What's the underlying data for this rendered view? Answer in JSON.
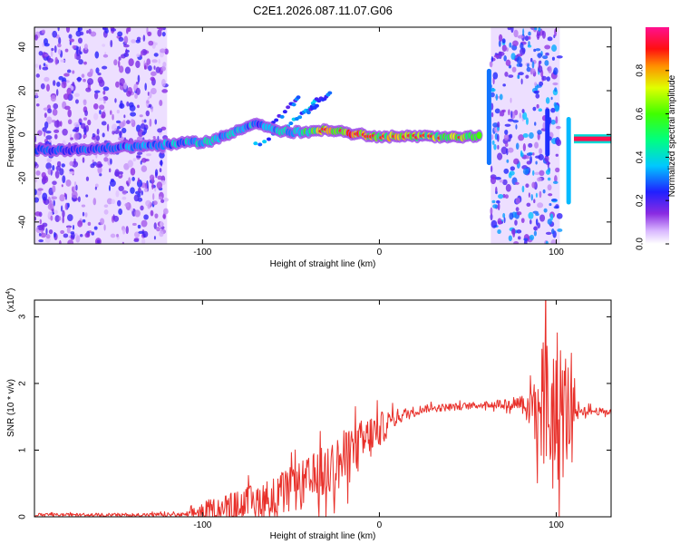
{
  "title": "C2E1.2026.087.11.07.G06",
  "chart_data": [
    {
      "type": "heatmap",
      "name": "spectrogram",
      "xlabel": "Height of straight line (km)",
      "ylabel": "Frequency (Hz)",
      "xlim": [
        -195,
        131
      ],
      "ylim": [
        -50,
        49
      ],
      "xticks": [
        -100,
        0,
        100
      ],
      "yticks": [
        -40,
        -20,
        0,
        20,
        40
      ],
      "xtick_labels": [
        "-100",
        "0",
        "100"
      ],
      "ytick_labels": [
        "-40",
        "-20",
        "0",
        "20",
        "40"
      ],
      "colorbar": {
        "label": "Normalized spectral amplitude",
        "range": [
          0,
          1
        ],
        "ticks": [
          0.0,
          0.2,
          0.4,
          0.6,
          0.8
        ],
        "tick_labels": [
          "0.0",
          "0.2",
          "0.4",
          "0.6",
          "0.8"
        ]
      },
      "ridge": [
        {
          "x": -195,
          "y": -7,
          "a": 0.25
        },
        {
          "x": -170,
          "y": -7,
          "a": 0.25
        },
        {
          "x": -150,
          "y": -6,
          "a": 0.28
        },
        {
          "x": -130,
          "y": -5,
          "a": 0.3
        },
        {
          "x": -110,
          "y": -4,
          "a": 0.35
        },
        {
          "x": -95,
          "y": -3,
          "a": 0.4
        },
        {
          "x": -85,
          "y": 0,
          "a": 0.35
        },
        {
          "x": -75,
          "y": 4,
          "a": 0.35
        },
        {
          "x": -68,
          "y": 5,
          "a": 0.3
        },
        {
          "x": -60,
          "y": 2,
          "a": 0.35
        },
        {
          "x": -50,
          "y": 1,
          "a": 0.4
        },
        {
          "x": -40,
          "y": 1,
          "a": 0.5
        },
        {
          "x": -30,
          "y": 2,
          "a": 0.65
        },
        {
          "x": -20,
          "y": 1,
          "a": 0.8
        },
        {
          "x": -10,
          "y": 0,
          "a": 0.7
        },
        {
          "x": 0,
          "y": -1,
          "a": 0.6
        },
        {
          "x": 10,
          "y": -1,
          "a": 0.7
        },
        {
          "x": 20,
          "y": -1,
          "a": 0.6
        },
        {
          "x": 30,
          "y": -1,
          "a": 0.6
        },
        {
          "x": 40,
          "y": -1,
          "a": 0.6
        },
        {
          "x": 50,
          "y": -1,
          "a": 0.55
        },
        {
          "x": 58,
          "y": -1,
          "a": 0.5
        }
      ],
      "branches": [
        {
          "points": [
            [
              -70,
              -5
            ],
            [
              -55,
              2
            ],
            [
              -45,
              8
            ],
            [
              -38,
              13
            ],
            [
              -35,
              16
            ]
          ],
          "a": 0.3
        },
        {
          "points": [
            [
              -60,
              5
            ],
            [
              -50,
              13
            ],
            [
              -45,
              17
            ]
          ],
          "a": 0.25
        },
        {
          "points": [
            [
              -40,
              10
            ],
            [
              -33,
              16
            ],
            [
              -27,
              19
            ]
          ],
          "a": 0.25
        }
      ],
      "noise_regions": [
        {
          "x": [
            -195,
            -120
          ],
          "y": [
            -50,
            49
          ],
          "a": 0.12
        },
        {
          "x": [
            63,
            102
          ],
          "y": [
            -50,
            49
          ],
          "a": 0.18
        }
      ],
      "spikes": [
        {
          "x": 62,
          "y_range": [
            -14,
            30
          ],
          "a": 0.3
        },
        {
          "x": 95,
          "y_range": [
            -10,
            12
          ],
          "a": 0.25
        },
        {
          "x": 107,
          "y_range": [
            -32,
            8
          ],
          "a": 0.35
        }
      ],
      "tail": {
        "x": [
          110,
          131
        ],
        "y": -2,
        "a": 0.95
      }
    },
    {
      "type": "line",
      "name": "snr",
      "xlabel": "Height of straight line (km)",
      "ylabel": "SNR (10 * v/v)",
      "y_multiplier": "(x10",
      "y_multiplier_exp": "4",
      "y_multiplier_close": ")",
      "xlim": [
        -195,
        131
      ],
      "ylim": [
        0,
        3.25
      ],
      "xticks": [
        -100,
        0,
        100
      ],
      "yticks": [
        0,
        1,
        2,
        3
      ],
      "xtick_labels": [
        "-100",
        "0",
        "100"
      ],
      "ytick_labels": [
        "0",
        "1",
        "2",
        "3"
      ],
      "color": "#e8302a",
      "envelope": [
        {
          "x": -195,
          "y": 0.03,
          "noise": 0.02
        },
        {
          "x": -110,
          "y": 0.03,
          "noise": 0.03
        },
        {
          "x": -100,
          "y": 0.08,
          "noise": 0.15
        },
        {
          "x": -80,
          "y": 0.15,
          "noise": 0.25
        },
        {
          "x": -60,
          "y": 0.3,
          "noise": 0.3
        },
        {
          "x": -40,
          "y": 0.5,
          "noise": 0.4
        },
        {
          "x": -20,
          "y": 0.85,
          "noise": 0.45
        },
        {
          "x": -5,
          "y": 1.2,
          "noise": 0.35
        },
        {
          "x": 10,
          "y": 1.5,
          "noise": 0.12
        },
        {
          "x": 25,
          "y": 1.62,
          "noise": 0.06
        },
        {
          "x": 60,
          "y": 1.68,
          "noise": 0.05
        },
        {
          "x": 80,
          "y": 1.72,
          "noise": 0.12
        },
        {
          "x": 88,
          "y": 1.7,
          "noise": 0.6
        },
        {
          "x": 96,
          "y": 1.6,
          "noise": 1.4
        },
        {
          "x": 105,
          "y": 1.6,
          "noise": 1.0
        },
        {
          "x": 112,
          "y": 1.6,
          "noise": 0.08
        },
        {
          "x": 131,
          "y": 1.57,
          "noise": 0.04
        }
      ]
    }
  ]
}
